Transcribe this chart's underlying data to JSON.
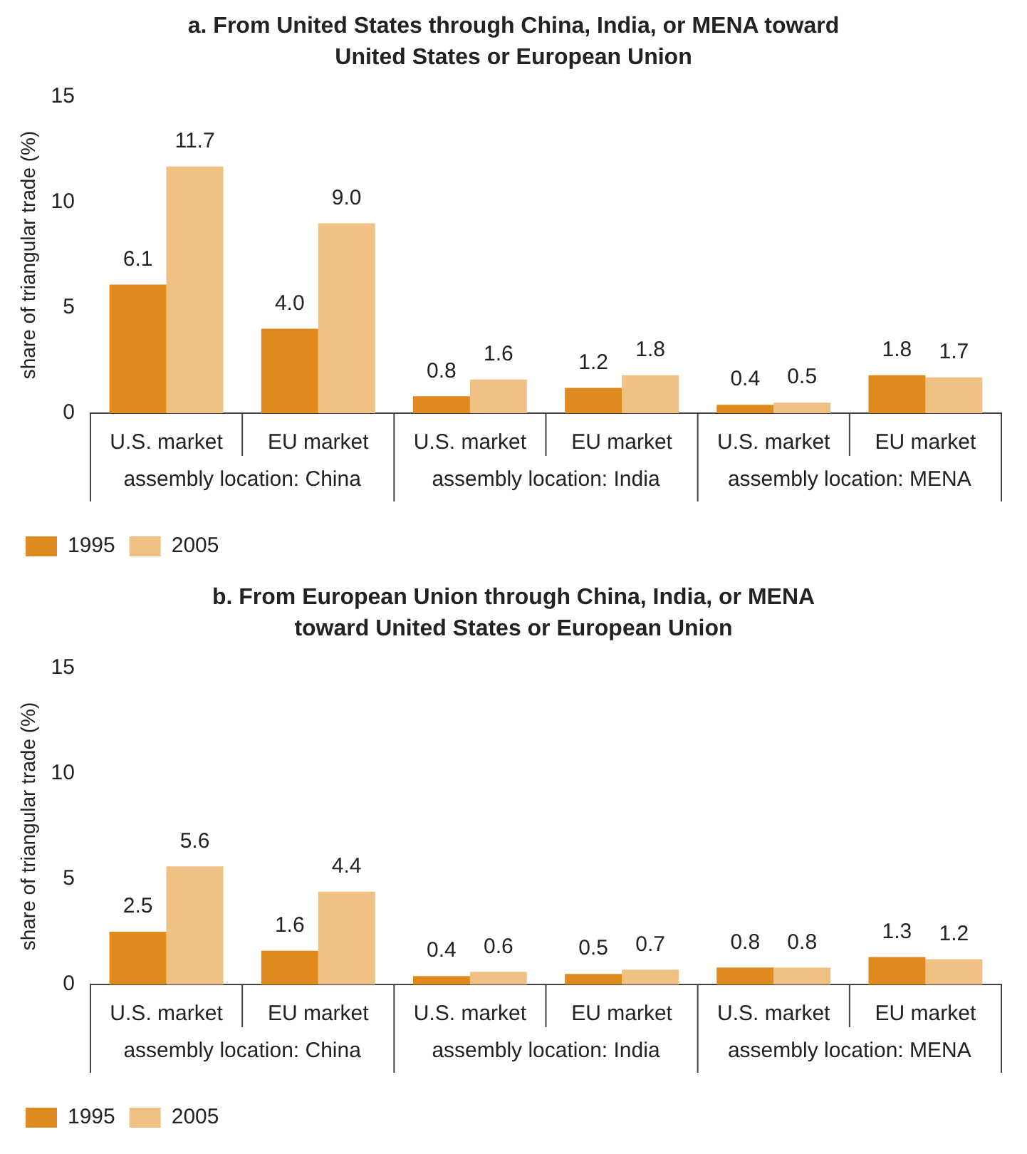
{
  "chart_data": [
    {
      "type": "bar",
      "title": "a. From United States through China, India, or MENA toward United States or European Union",
      "ylabel": "share of triangular trade (%)",
      "categories": [
        "U.S. market",
        "EU market",
        "U.S. market",
        "EU market",
        "U.S. market",
        "EU market"
      ],
      "annotations": [
        "assembly location: China",
        "assembly location: India",
        "assembly location: MENA"
      ],
      "series": [
        {
          "name": "1995",
          "color": "#e0891c",
          "values": [
            6.1,
            4.0,
            0.8,
            1.2,
            0.4,
            1.8
          ],
          "value_labels": [
            "6.1",
            "4.0",
            "0.8",
            "1.2",
            "0.4",
            "1.8"
          ]
        },
        {
          "name": "2005",
          "color": "#f0c185",
          "values": [
            11.7,
            9.0,
            1.6,
            1.8,
            0.5,
            1.7
          ],
          "value_labels": [
            "11.7",
            "9.0",
            "1.6",
            "1.8",
            "0.5",
            "1.7"
          ]
        }
      ],
      "ylim": [
        0,
        15
      ],
      "yticks": [
        0,
        5,
        10,
        15
      ],
      "grid": false,
      "legend": "bottom left"
    },
    {
      "type": "bar",
      "title": "b. From European Union through China, India, or MENA toward United States or European Union",
      "ylabel": "share of triangular trade (%)",
      "categories": [
        "U.S. market",
        "EU market",
        "U.S. market",
        "EU market",
        "U.S. market",
        "EU market"
      ],
      "annotations": [
        "assembly location: China",
        "assembly location: India",
        "assembly location: MENA"
      ],
      "series": [
        {
          "name": "1995",
          "color": "#e0891c",
          "values": [
            2.5,
            1.6,
            0.4,
            0.5,
            0.8,
            1.3
          ],
          "value_labels": [
            "2.5",
            "1.6",
            "0.4",
            "0.5",
            "0.8",
            "1.3"
          ]
        },
        {
          "name": "2005",
          "color": "#f0c185",
          "values": [
            5.6,
            4.4,
            0.6,
            0.7,
            0.8,
            1.2
          ],
          "value_labels": [
            "5.6",
            "4.4",
            "0.6",
            "0.7",
            "0.8",
            "1.2"
          ]
        }
      ],
      "ylim": [
        0,
        15
      ],
      "yticks": [
        0,
        5,
        10,
        15
      ],
      "grid": false,
      "legend": "bottom left"
    }
  ]
}
